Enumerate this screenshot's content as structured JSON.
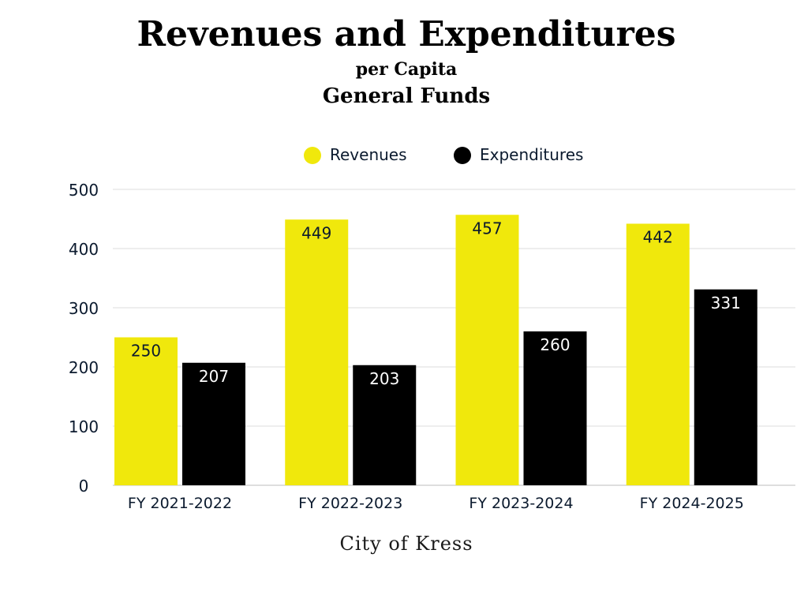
{
  "chart_data": {
    "type": "bar",
    "title": "Revenues and Expenditures",
    "subtitle": "per Capita",
    "subtitle2": "General Funds",
    "footer": "City of Kress",
    "categories": [
      "FY 2021-2022",
      "FY 2022-2023",
      "FY 2023-2024",
      "FY 2024-2025"
    ],
    "series": [
      {
        "name": "Revenues",
        "values": [
          250,
          449,
          457,
          442
        ],
        "color": "#f0e80c",
        "label_color": "#0b1a2e"
      },
      {
        "name": "Expenditures",
        "values": [
          207,
          203,
          260,
          331
        ],
        "color": "#000000",
        "label_color": "#ffffff"
      }
    ],
    "yticks": [
      0,
      100,
      200,
      300,
      400,
      500
    ],
    "ylim": [
      0,
      500
    ],
    "grid": true,
    "legend": "top-center"
  }
}
